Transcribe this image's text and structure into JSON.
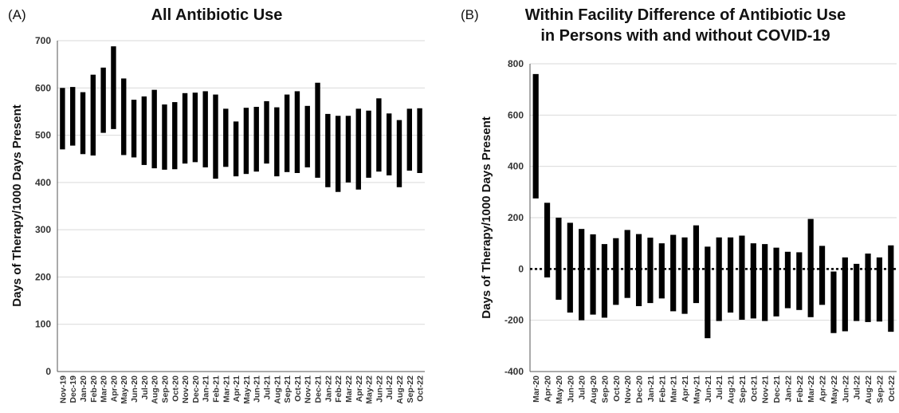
{
  "chart_data": [
    {
      "type": "bar",
      "panel_label": "(A)",
      "title": "All Antibiotic Use",
      "ylabel": "Days of Therapy/1000 Days Present",
      "xlabel": "",
      "ylim": [
        0,
        700
      ],
      "yticks": [
        0,
        100,
        200,
        300,
        400,
        500,
        600,
        700
      ],
      "grid": true,
      "bar_style": "floating range (low to high)",
      "categories": [
        "Nov-19",
        "Dec-19",
        "Jan-20",
        "Feb-20",
        "Mar-20",
        "Apr-20",
        "May-20",
        "Jun-20",
        "Jul-20",
        "Aug-20",
        "Sep-20",
        "Oct-20",
        "Nov-20",
        "Dec-20",
        "Jan-21",
        "Feb-21",
        "Mar-21",
        "Apr-21",
        "May-21",
        "Jun-21",
        "Jul-21",
        "Aug-21",
        "Sep-21",
        "Oct-21",
        "Nov-21",
        "Dec-21",
        "Jan-22",
        "Feb-22",
        "Mar-22",
        "Apr-22",
        "May-22",
        "Jun-22",
        "Jul-22",
        "Aug-22",
        "Sep-22",
        "Oct-22"
      ],
      "low": [
        470,
        478,
        460,
        457,
        505,
        513,
        458,
        453,
        437,
        430,
        427,
        428,
        440,
        443,
        432,
        408,
        433,
        413,
        418,
        423,
        440,
        413,
        422,
        420,
        432,
        410,
        390,
        380,
        400,
        385,
        410,
        423,
        415,
        390,
        425,
        420
      ],
      "high": [
        600,
        602,
        591,
        628,
        643,
        688,
        620,
        575,
        582,
        596,
        565,
        570,
        589,
        590,
        593,
        586,
        556,
        529,
        558,
        560,
        572,
        559,
        586,
        593,
        562,
        611,
        545,
        541,
        541,
        556,
        552,
        578,
        546,
        532,
        556,
        557
      ]
    },
    {
      "type": "bar",
      "panel_label": "(B)",
      "title": "Within Facility Difference of Antibiotic Use in Persons with and without COVID-19",
      "title_lines": [
        "Within Facility Difference of Antibiotic Use",
        "in Persons with and without COVID-19"
      ],
      "ylabel": "Days of Therapy/1000 Days Present",
      "xlabel": "",
      "ylim": [
        -400,
        800
      ],
      "yticks": [
        -400,
        -200,
        0,
        200,
        400,
        600,
        800
      ],
      "grid": true,
      "reference_line": 0,
      "bar_style": "floating range (low to high)",
      "categories": [
        "Mar-20",
        "Apr-20",
        "May-20",
        "Jun-20",
        "Jul-20",
        "Aug-20",
        "Sep-20",
        "Oct-20",
        "Nov-20",
        "Dec-20",
        "Jan-21",
        "Feb-21",
        "Mar-21",
        "Apr-21",
        "May-21",
        "Jun-21",
        "Jul-21",
        "Aug-21",
        "Sep-21",
        "Oct-21",
        "Nov-21",
        "Dec-21",
        "Jan-22",
        "Feb-22",
        "Mar-22",
        "Apr-22",
        "May-22",
        "Jun-22",
        "Jul-22",
        "Aug-22",
        "Sep-22",
        "Oct-22"
      ],
      "low": [
        275,
        -33,
        -120,
        -170,
        -200,
        -178,
        -190,
        -140,
        -113,
        -145,
        -133,
        -115,
        -165,
        -175,
        -133,
        -270,
        -203,
        -170,
        -198,
        -193,
        -203,
        -185,
        -153,
        -160,
        -188,
        -140,
        -250,
        -243,
        -203,
        -207,
        -205,
        -245
      ],
      "high": [
        760,
        258,
        200,
        180,
        156,
        135,
        97,
        120,
        152,
        136,
        122,
        100,
        133,
        123,
        170,
        87,
        123,
        123,
        130,
        100,
        97,
        83,
        67,
        65,
        195,
        90,
        -10,
        45,
        20,
        60,
        45,
        92
      ]
    }
  ]
}
